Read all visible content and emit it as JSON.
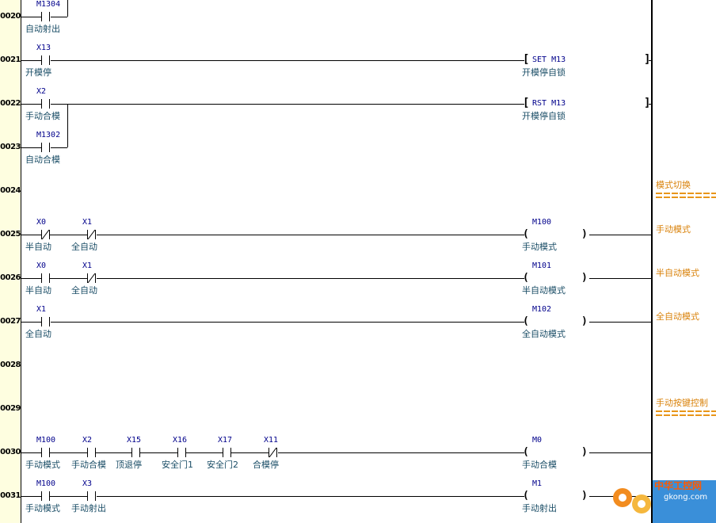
{
  "rungs": [
    {
      "step": "0020",
      "contacts": [
        {
          "addr": "M1304",
          "comment": "自动射出",
          "type": "NO"
        }
      ]
    },
    {
      "step": "0021",
      "contacts": [
        {
          "addr": "X13",
          "comment": "开模停",
          "type": "NO"
        }
      ],
      "output": {
        "instr": "SET  M13",
        "comment": "开模停自锁"
      }
    },
    {
      "step": "0022",
      "contacts": [
        {
          "addr": "X2",
          "comment": "手动合模",
          "type": "NO"
        }
      ],
      "output": {
        "instr": "RST  M13",
        "comment": "开模停自锁"
      }
    },
    {
      "step": "0023",
      "contacts": [
        {
          "addr": "M1302",
          "comment": "自动合模",
          "type": "NO"
        }
      ]
    },
    {
      "step": "0024",
      "note": "模式切换"
    },
    {
      "step": "0025",
      "contacts": [
        {
          "addr": "X0",
          "comment": "半自动",
          "type": "NC"
        },
        {
          "addr": "X1",
          "comment": "全自动",
          "type": "NC"
        }
      ],
      "coil": {
        "addr": "M100",
        "comment": "手动模式"
      },
      "note": "手动模式"
    },
    {
      "step": "0026",
      "contacts": [
        {
          "addr": "X0",
          "comment": "半自动",
          "type": "NO"
        },
        {
          "addr": "X1",
          "comment": "全自动",
          "type": "NC"
        }
      ],
      "coil": {
        "addr": "M101",
        "comment": "半自动模式"
      },
      "note": "半自动模式"
    },
    {
      "step": "0027",
      "contacts": [
        {
          "addr": "X1",
          "comment": "全自动",
          "type": "NO"
        }
      ],
      "coil": {
        "addr": "M102",
        "comment": "全自动模式"
      },
      "note": "全自动模式"
    },
    {
      "step": "0028"
    },
    {
      "step": "0029",
      "note": "手动按键控制"
    },
    {
      "step": "0030",
      "contacts": [
        {
          "addr": "M100",
          "comment": "手动模式",
          "type": "NO"
        },
        {
          "addr": "X2",
          "comment": "手动合模",
          "type": "NO"
        },
        {
          "addr": "X15",
          "comment": "顶退停",
          "type": "NO"
        },
        {
          "addr": "X16",
          "comment": "安全门1",
          "type": "NO"
        },
        {
          "addr": "X17",
          "comment": "安全门2",
          "type": "NO"
        },
        {
          "addr": "X11",
          "comment": "合模停",
          "type": "NC"
        }
      ],
      "coil": {
        "addr": "M0",
        "comment": "手动合模"
      }
    },
    {
      "step": "0031",
      "contacts": [
        {
          "addr": "M100",
          "comment": "手动模式",
          "type": "NO"
        },
        {
          "addr": "X3",
          "comment": "手动射出",
          "type": "NO"
        }
      ],
      "coil": {
        "addr": "M1",
        "comment": "手动射出"
      }
    }
  ],
  "logo": {
    "name": "中华工控网",
    "url": "gkong.com"
  },
  "colors": {
    "addr": "#00008b",
    "comment": "#1a4d66",
    "note": "#d9820b",
    "step_bg": "#fefee0"
  }
}
